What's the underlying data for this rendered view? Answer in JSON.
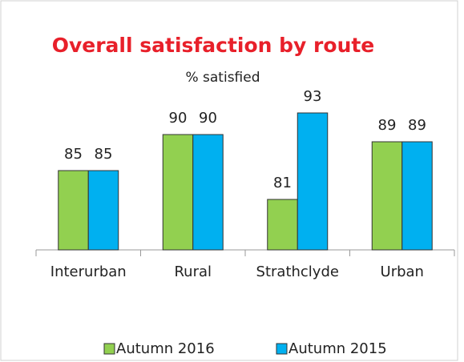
{
  "chart_data": {
    "type": "bar",
    "title": "Overall satisfaction by route",
    "subtitle": "% satisfied",
    "categories": [
      "Interurban",
      "Rural",
      "Strathclyde",
      "Urban"
    ],
    "series": [
      {
        "name": "Autumn 2016",
        "color": "#92d050",
        "values": [
          85,
          90,
          81,
          89
        ]
      },
      {
        "name": "Autumn 2015",
        "color": "#00b0f0",
        "values": [
          85,
          90,
          93,
          89
        ]
      }
    ],
    "ylim": [
      74,
      100
    ],
    "legend": "bottom"
  }
}
